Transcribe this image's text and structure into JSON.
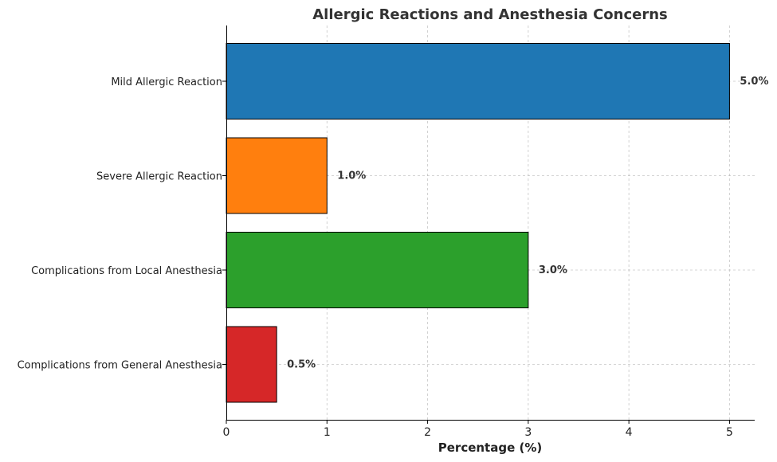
{
  "chart_data": {
    "type": "bar",
    "orientation": "horizontal",
    "title": "Allergic Reactions and Anesthesia Concerns",
    "xlabel": "Percentage (%)",
    "ylabel": "",
    "xlim": [
      0,
      5.25
    ],
    "xticks": [
      "0",
      "1",
      "2",
      "3",
      "4",
      "5"
    ],
    "grid": true,
    "categories": [
      "Mild Allergic Reaction",
      "Severe Allergic Reaction",
      "Complications from Local Anesthesia",
      "Complications from General Anesthesia"
    ],
    "values": [
      5.0,
      1.0,
      3.0,
      0.5
    ],
    "value_labels": [
      "5.0%",
      "1.0%",
      "3.0%",
      "0.5%"
    ],
    "colors": [
      "#1f77b4",
      "#ff7f0e",
      "#2ca02c",
      "#d62728"
    ]
  }
}
